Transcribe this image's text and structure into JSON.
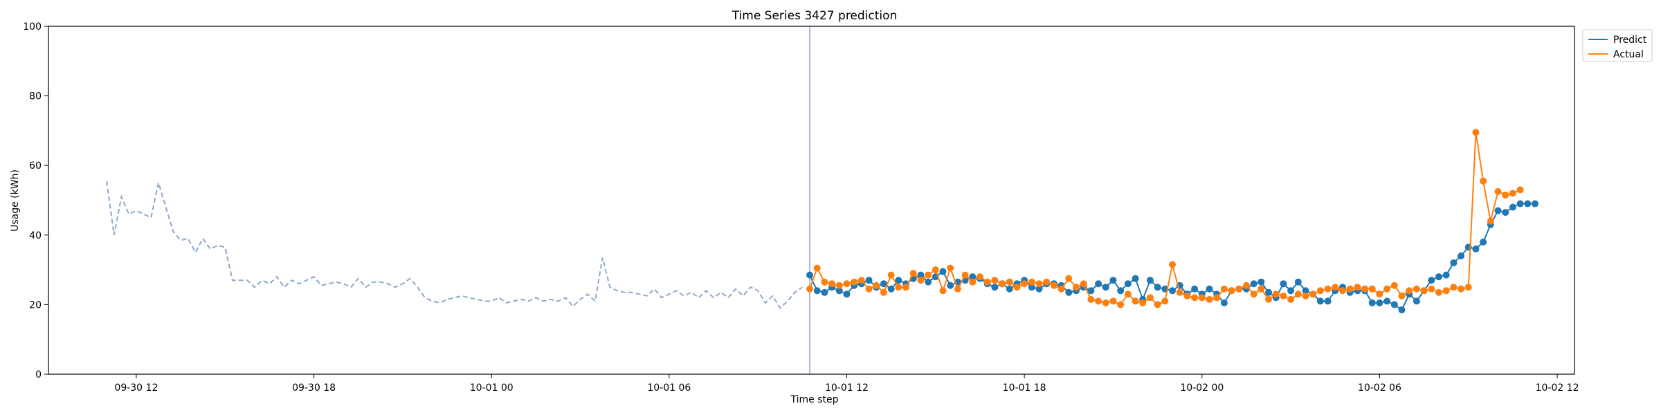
{
  "chart_data": {
    "type": "line",
    "title": "Time Series 3427 prediction",
    "xlabel": "Time step",
    "ylabel": "Usage (kWh)",
    "ylim": [
      0,
      100
    ],
    "yticks": [
      0,
      20,
      40,
      60,
      80,
      100
    ],
    "xlim": [
      "2023-09-30T09:02",
      "2023-10-02T12:35"
    ],
    "xticks": [
      {
        "t": "2023-09-30T12:00",
        "label": "09-30 12"
      },
      {
        "t": "2023-09-30T18:00",
        "label": "09-30 18"
      },
      {
        "t": "2023-10-01T00:00",
        "label": "10-01 00"
      },
      {
        "t": "2023-10-01T06:00",
        "label": "10-01 06"
      },
      {
        "t": "2023-10-01T12:00",
        "label": "10-01 12"
      },
      {
        "t": "2023-10-01T18:00",
        "label": "10-01 18"
      },
      {
        "t": "2023-10-02T00:00",
        "label": "10-02 00"
      },
      {
        "t": "2023-10-02T06:00",
        "label": "10-02 06"
      },
      {
        "t": "2023-10-02T12:00",
        "label": "10-02 12"
      }
    ],
    "grid": false,
    "legend_position": "upper-right-outside",
    "colors": {
      "history": "#8fa8c8",
      "predict": "#1f77b4",
      "actual": "#ff7f0e",
      "split_line": "#8fa0d8"
    },
    "split_time": "2023-10-01T10:45",
    "history": {
      "start": "2023-09-30T11:00",
      "step_minutes": 15,
      "values": [
        55.5,
        40,
        51,
        46,
        47,
        46,
        45,
        55,
        48,
        41,
        38.5,
        39,
        35,
        39,
        36,
        37,
        36.5,
        27,
        27,
        27,
        25,
        27,
        26,
        28,
        25,
        27,
        26,
        27,
        28,
        25.5,
        26,
        26.5,
        26,
        25,
        27.5,
        25,
        26.5,
        26.5,
        26,
        25,
        26,
        27.5,
        25,
        22,
        21,
        20.5,
        21.5,
        22,
        22.5,
        22,
        21.5,
        21,
        21,
        22,
        20.5,
        21,
        21.5,
        21,
        22,
        21,
        21.5,
        21,
        22,
        19.5,
        21.5,
        23,
        21,
        33.5,
        25,
        24,
        23.5,
        23.5,
        23,
        22.5,
        24.5,
        22,
        23,
        24,
        22.5,
        23.5,
        22,
        24,
        22,
        23.5,
        22,
        24.5,
        22.5,
        25,
        24,
        20.5,
        22.5,
        19,
        21,
        23.5,
        25
      ]
    },
    "series": [
      {
        "name": "Predict",
        "start": "2023-10-01T10:45",
        "step_minutes": 15,
        "values": [
          28.5,
          24,
          23.5,
          25,
          24,
          23,
          25.5,
          26,
          27,
          25,
          26,
          24.5,
          27,
          26,
          27.5,
          28.5,
          26.5,
          28,
          29.5,
          25.5,
          26.5,
          27,
          28,
          27.5,
          26,
          25,
          26,
          24.5,
          26,
          27,
          25,
          24.5,
          26,
          26,
          25.5,
          23.5,
          24,
          25,
          24,
          26,
          25,
          27,
          24,
          26,
          27.5,
          21.5,
          27,
          25,
          24.5,
          24,
          25.5,
          23,
          24.5,
          23,
          24.5,
          23,
          20.5,
          24,
          24.5,
          24.5,
          26,
          26.5,
          23.5,
          22,
          26,
          24,
          26.5,
          24,
          23,
          21,
          21,
          24,
          25,
          23.5,
          24,
          24,
          20.5,
          20.5,
          21,
          20,
          18.5,
          23,
          21,
          24,
          27,
          28,
          28.5,
          32,
          34,
          36.5,
          36,
          38,
          43,
          47,
          46.5,
          48,
          49,
          49,
          49
        ]
      },
      {
        "name": "Actual",
        "start": "2023-10-01T10:45",
        "step_minutes": 15,
        "values": [
          24.5,
          30.5,
          26.5,
          26,
          25.5,
          26,
          26.5,
          27,
          24.5,
          25.5,
          23.5,
          28.5,
          25,
          25,
          29,
          27,
          28.5,
          30,
          24,
          30.5,
          24.5,
          28.5,
          26.5,
          28,
          26.5,
          27,
          26,
          26.5,
          25,
          26,
          26.5,
          26,
          26.5,
          25.5,
          24.5,
          27.5,
          25,
          26,
          21.5,
          21,
          20.5,
          21,
          20,
          23,
          21,
          20.5,
          22,
          20,
          21,
          31.5,
          23.5,
          22.5,
          22,
          22,
          21.5,
          22,
          24.5,
          24,
          24.5,
          25.5,
          23,
          24.5,
          21.5,
          23,
          22.5,
          21.5,
          23,
          22.5,
          23,
          24,
          24.5,
          25,
          24,
          24.5,
          25,
          24.5,
          24.5,
          23,
          24.5,
          25.5,
          22.5,
          24,
          24.5,
          24,
          24.5,
          23.5,
          24,
          25,
          24.5,
          25,
          69.5,
          55.5,
          44,
          52.5,
          51.5,
          52,
          53
        ]
      }
    ]
  }
}
